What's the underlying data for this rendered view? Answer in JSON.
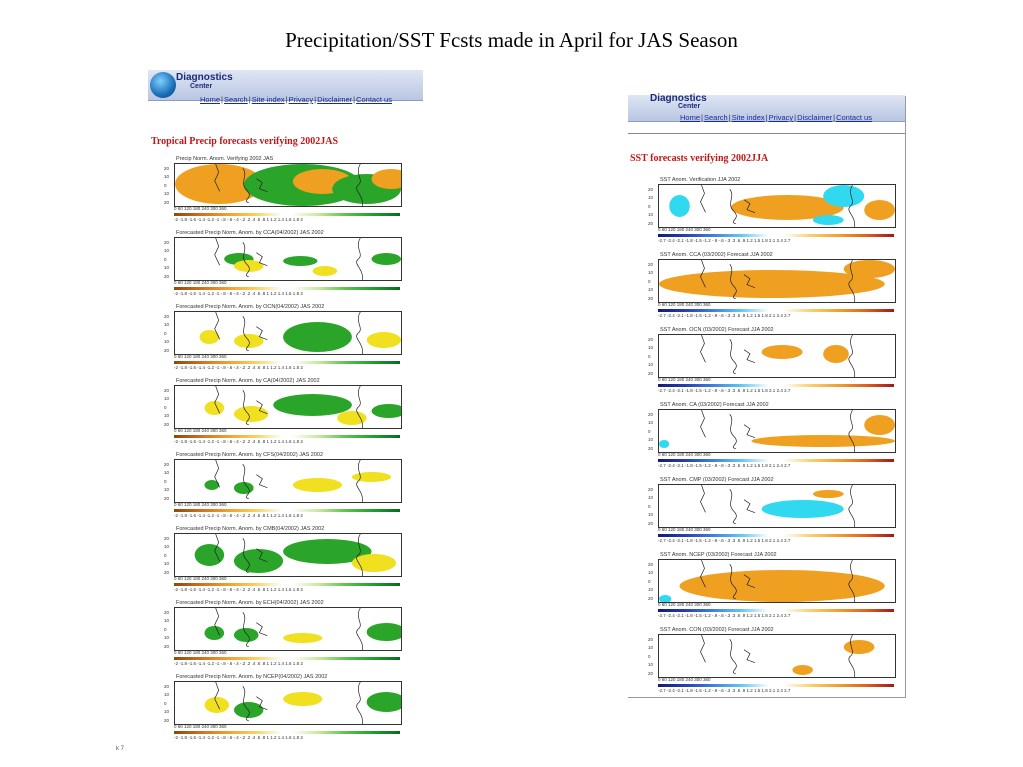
{
  "slide": {
    "title": "Precipitation/SST Fcsts made in April for JAS Season"
  },
  "site": {
    "logo_line1": "Diagnostics",
    "logo_line2": "Center",
    "nav": [
      "Home",
      "Search",
      "Site index",
      "Privacy",
      "Disclaimer",
      "Contact us"
    ]
  },
  "precip_panel": {
    "heading": "Tropical Precip forecasts verifying 2002JAS",
    "colorbar_ticks": "-2  -1.8 -1.6 -1.4 -1.2  -1  -.8  -.6  -.4  -.2   .2   .4   .6   .8   1  1.2  1.4  1.6  1.8  2",
    "lon_ticks": "0          60          120          180          240          300          360",
    "maps": [
      {
        "title": "Precip Norm. Anom. Verifying 2002 JAS",
        "kind": "obs"
      },
      {
        "title": "Forecasted Precip Norm. Anom. by CCA(04/2002) JAS 2002",
        "kind": "f1"
      },
      {
        "title": "Forecasted Precip Norm. Anom. by OCN(04/2002) JAS 2002",
        "kind": "f2"
      },
      {
        "title": "Forecasted Precip Norm. Anom. by CA(04/2002) JAS 2002",
        "kind": "f3"
      },
      {
        "title": "Forecasted Precip Norm. Anom. by CFS(04/2002) JAS 2002",
        "kind": "f4"
      },
      {
        "title": "Forecasted Precip Norm. Anom. by CMB(04/2002) JAS 2002",
        "kind": "f5"
      },
      {
        "title": "Forecasted Precip Norm. Anom. by ECH(04/2002) JAS 2002",
        "kind": "f6"
      },
      {
        "title": "Forecasted Precip Norm. Anom. by NCEP(04/2002) JAS 2002",
        "kind": "f7"
      }
    ]
  },
  "sst_panel": {
    "heading": "SST forecasts verifying 2002JJA",
    "colorbar_ticks": "-2.7  -2.4  -2.1  -1.8  -1.5  -1.2  -.9  -.6  -.3   .3   .6   .9  1.2  1.5  1.8  2.1  2.4  2.7",
    "lon_ticks": "0          60          120          180          240          300          360",
    "maps": [
      {
        "title": "SST Anom. Verification JJA 2002",
        "kind": "sobs"
      },
      {
        "title": "SST Anom. CCA (03/2002) Forecast JJA 2002",
        "kind": "s1"
      },
      {
        "title": "SST Anom. OCN (03/2002) Forecast JJA 2002",
        "kind": "s2"
      },
      {
        "title": "SST Anom. CA (03/2002) Forecast JJA 2002",
        "kind": "s3"
      },
      {
        "title": "SST Anom. CMP (03/2002) Forecast JJA 2002",
        "kind": "s4"
      },
      {
        "title": "SST Anom. NCEP (03/2002) Forecast JJA 2002",
        "kind": "s5"
      },
      {
        "title": "SST Anom. CON (03/2002) Forecast JJA 2002",
        "kind": "s6"
      }
    ]
  },
  "colors": {
    "green": "#2aa52a",
    "yellow": "#f0e020",
    "orange": "#f0a020",
    "cyan": "#30d8f0",
    "heading_red": "#c01818"
  },
  "footer": "k 7"
}
